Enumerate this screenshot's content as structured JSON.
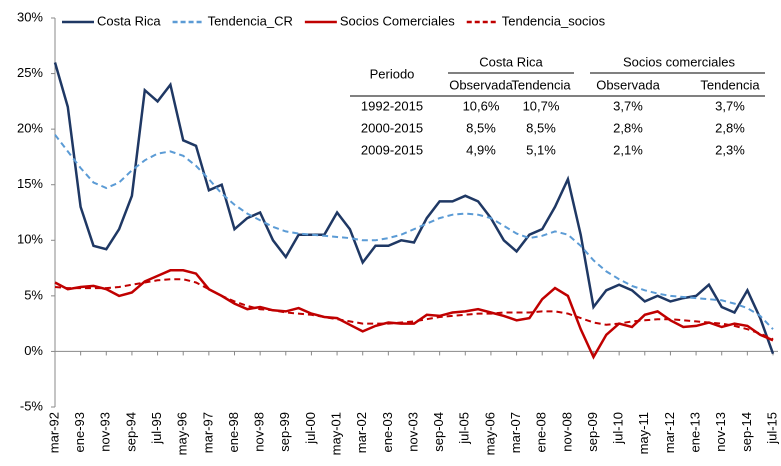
{
  "chart_data": {
    "type": "line",
    "categories": [
      "mar-92",
      null,
      "ene-93",
      null,
      "nov-93",
      null,
      "sep-94",
      null,
      "jul-95",
      null,
      "may-96",
      null,
      "mar-97",
      null,
      "ene-98",
      null,
      "nov-98",
      null,
      "sep-99",
      null,
      "jul-00",
      null,
      "may-01",
      null,
      "mar-02",
      null,
      "ene-03",
      null,
      "nov-03",
      null,
      "sep-04",
      null,
      "jul-05",
      null,
      "may-06",
      null,
      "mar-07",
      null,
      "ene-08",
      null,
      "nov-08",
      null,
      "sep-09",
      null,
      "jul-10",
      null,
      "may-11",
      null,
      "mar-12",
      null,
      "ene-13",
      null,
      "nov-13",
      null,
      "sep-14",
      null,
      "jul-15"
    ],
    "series": [
      {
        "name": "Costa Rica",
        "color": "#1f3864",
        "dashed": false,
        "values": [
          26,
          22,
          13,
          9.5,
          9.2,
          11,
          14,
          23.5,
          22.5,
          24,
          19,
          18.5,
          14.5,
          15,
          11,
          12,
          12.5,
          10,
          8.5,
          10.5,
          10.5,
          10.5,
          12.5,
          11,
          8,
          9.5,
          9.5,
          10,
          9.8,
          12,
          13.5,
          13.5,
          14,
          13.5,
          12,
          10,
          9,
          10.5,
          11,
          13,
          15.5,
          10.5,
          4,
          5.5,
          6,
          5.5,
          4.5,
          5,
          4.5,
          4.8,
          5,
          6,
          4,
          3.5,
          5.5,
          3,
          -0.2
        ]
      },
      {
        "name": "Tendencia_CR",
        "color": "#5b9bd5",
        "dashed": true,
        "values": [
          19.5,
          18,
          16.5,
          15.2,
          14.7,
          15.2,
          16.3,
          17.2,
          17.8,
          18,
          17.6,
          16.7,
          15.5,
          14.2,
          13.2,
          12.4,
          11.8,
          11.2,
          10.8,
          10.6,
          10.5,
          10.4,
          10.3,
          10.2,
          10,
          10,
          10.2,
          10.5,
          11,
          11.5,
          12,
          12.3,
          12.4,
          12.3,
          12,
          11.3,
          10.6,
          10.2,
          10.4,
          10.8,
          10.5,
          9.5,
          8.2,
          7.2,
          6.5,
          5.9,
          5.5,
          5.2,
          5,
          4.9,
          4.8,
          4.7,
          4.6,
          4.3,
          3.9,
          3.2,
          2
        ]
      },
      {
        "name": "Socios Comerciales",
        "color": "#c00000",
        "dashed": false,
        "values": [
          6.2,
          5.6,
          5.8,
          5.9,
          5.6,
          5,
          5.3,
          6.3,
          6.8,
          7.3,
          7.3,
          7,
          5.6,
          5,
          4.3,
          3.8,
          4,
          3.7,
          3.6,
          3.9,
          3.4,
          3.1,
          3,
          2.4,
          1.8,
          2.3,
          2.6,
          2.5,
          2.5,
          3.3,
          3.2,
          3.5,
          3.6,
          3.8,
          3.5,
          3.2,
          2.8,
          3,
          4.7,
          5.7,
          5,
          2,
          -0.5,
          1.5,
          2.5,
          2.2,
          3.3,
          3.6,
          2.8,
          2.2,
          2.3,
          2.6,
          2.2,
          2.5,
          2.3,
          1.5,
          1
        ]
      },
      {
        "name": "Tendencia_socios",
        "color": "#c00000",
        "dashed": true,
        "values": [
          5.8,
          5.7,
          5.7,
          5.7,
          5.7,
          5.8,
          6,
          6.2,
          6.4,
          6.5,
          6.5,
          6.2,
          5.6,
          5,
          4.5,
          4.1,
          3.8,
          3.7,
          3.5,
          3.4,
          3.3,
          3.1,
          2.9,
          2.7,
          2.5,
          2.5,
          2.5,
          2.6,
          2.7,
          2.9,
          3.1,
          3.2,
          3.3,
          3.4,
          3.4,
          3.5,
          3.5,
          3.5,
          3.6,
          3.6,
          3.4,
          3,
          2.6,
          2.4,
          2.5,
          2.7,
          2.8,
          2.9,
          2.9,
          2.8,
          2.7,
          2.6,
          2.5,
          2.3,
          2,
          1.6,
          1.1
        ]
      }
    ],
    "ylim": [
      -5,
      30
    ],
    "yticks": [
      {
        "value": -5,
        "label": "-5%"
      },
      {
        "value": 0,
        "label": "0%"
      },
      {
        "value": 5,
        "label": "5%"
      },
      {
        "value": 10,
        "label": "10%"
      },
      {
        "value": 15,
        "label": "15%"
      },
      {
        "value": 20,
        "label": "20%"
      },
      {
        "value": 25,
        "label": "25%"
      },
      {
        "value": 30,
        "label": "30%"
      }
    ],
    "table": {
      "header": [
        "Periodo",
        "Costa Rica",
        "Socios comerciales"
      ],
      "subheader": [
        "Observada",
        "Tendencia",
        "Observada",
        "Tendencia"
      ],
      "rows": [
        [
          "1992-2015",
          "10,6%",
          "10,7%",
          "3,7%",
          "3,7%"
        ],
        [
          "2000-2015",
          "8,5%",
          "8,5%",
          "2,8%",
          "2,8%"
        ],
        [
          "2009-2015",
          "4,9%",
          "5,1%",
          "2,1%",
          "2,3%"
        ]
      ]
    }
  }
}
